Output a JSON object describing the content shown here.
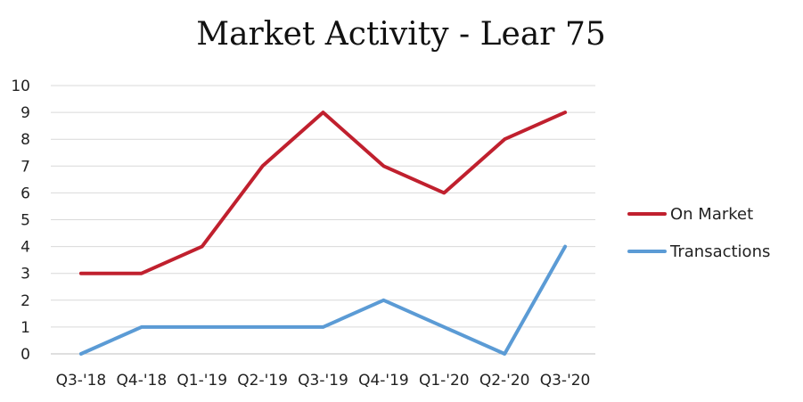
{
  "chart_data": {
    "type": "line",
    "title": "Market Activity - Lear 75",
    "categories": [
      "Q3-'18",
      "Q4-'18",
      "Q1-'19",
      "Q2-'19",
      "Q3-'19",
      "Q4-'19",
      "Q1-'20",
      "Q2-'20",
      "Q3-'20"
    ],
    "ylim": [
      0,
      10
    ],
    "yticks": [
      0,
      1,
      2,
      3,
      4,
      5,
      6,
      7,
      8,
      9,
      10
    ],
    "grid": true,
    "legend_position": "right",
    "series": [
      {
        "name": "On Market",
        "color": "#c0202e",
        "values": [
          3,
          3,
          4,
          7,
          9,
          7,
          6,
          8,
          9
        ]
      },
      {
        "name": "Transactions",
        "color": "#5b9bd5",
        "values": [
          0,
          1,
          1,
          1,
          1,
          2,
          1,
          0,
          4
        ]
      }
    ]
  }
}
